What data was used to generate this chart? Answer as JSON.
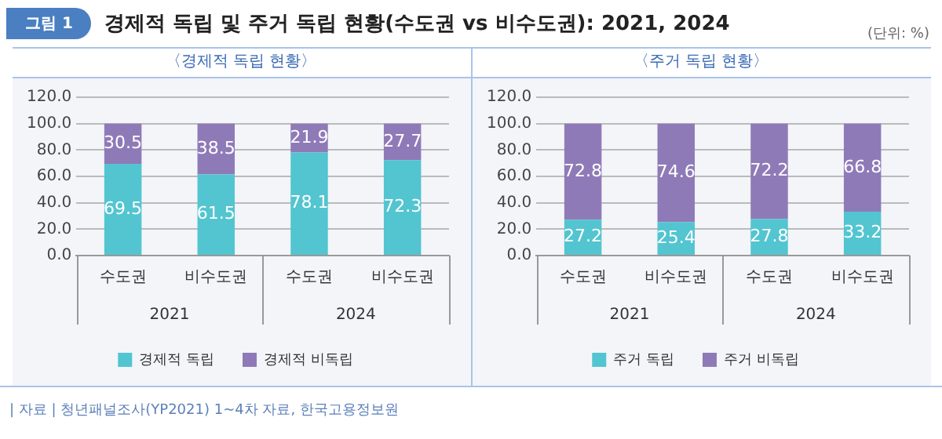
{
  "chart_data": [
    {
      "type": "bar",
      "title": "〈경제적 독립 현황〉",
      "categories": [
        "수도권",
        "비수도권",
        "수도권",
        "비수도권"
      ],
      "stacked": true,
      "data_labels": true,
      "grid": "y",
      "legend": "bottom",
      "ylim": [
        0,
        120
      ],
      "yticks": [
        {
          "value": 0,
          "label": "0.0"
        },
        {
          "value": 20,
          "label": "20.0"
        },
        {
          "value": 40,
          "label": "40.0"
        },
        {
          "value": 60,
          "label": "60.0"
        },
        {
          "value": 80,
          "label": "80.0"
        },
        {
          "value": 100,
          "label": "100.0"
        },
        {
          "value": 120,
          "label": "120.0"
        }
      ],
      "series": [
        {
          "name": "경제적 독립",
          "color": "#52c5d0",
          "values": [
            69.5,
            61.5,
            78.1,
            72.3
          ]
        },
        {
          "name": "경제적 비독립",
          "color": "#8f7ab8",
          "values": [
            30.5,
            38.5,
            21.9,
            27.7
          ]
        }
      ],
      "annotations": [
        "2021",
        "2024",
        "그림 1",
        "경제적 독립 및 주거 독립 현황(수도권 vs 비수도권): 2021, 2024",
        "(단위: %)"
      ]
    },
    {
      "type": "bar",
      "title": "〈주거 독립 현황〉",
      "categories": [
        "수도권",
        "비수도권",
        "수도권",
        "비수도권"
      ],
      "stacked": true,
      "data_labels": true,
      "grid": "y",
      "legend": "bottom",
      "ylim": [
        0,
        120
      ],
      "yticks": [
        {
          "value": 0,
          "label": "0.0"
        },
        {
          "value": 20,
          "label": "20.0"
        },
        {
          "value": 40,
          "label": "40.0"
        },
        {
          "value": 60,
          "label": "60.0"
        },
        {
          "value": 80,
          "label": "80.0"
        },
        {
          "value": 100,
          "label": "100.0"
        },
        {
          "value": 120,
          "label": "120.0"
        }
      ],
      "series": [
        {
          "name": "주거 독립",
          "color": "#52c5d0",
          "values": [
            27.2,
            25.4,
            27.8,
            33.2
          ]
        },
        {
          "name": "주거 비독립",
          "color": "#8f7ab8",
          "values": [
            72.8,
            74.6,
            72.2,
            66.8
          ]
        }
      ],
      "annotations": [
        "2021",
        "2024",
        "| 자료 | 청년패널조사(YP2021) 1~4차 자료, 한국고용정보원"
      ]
    }
  ]
}
